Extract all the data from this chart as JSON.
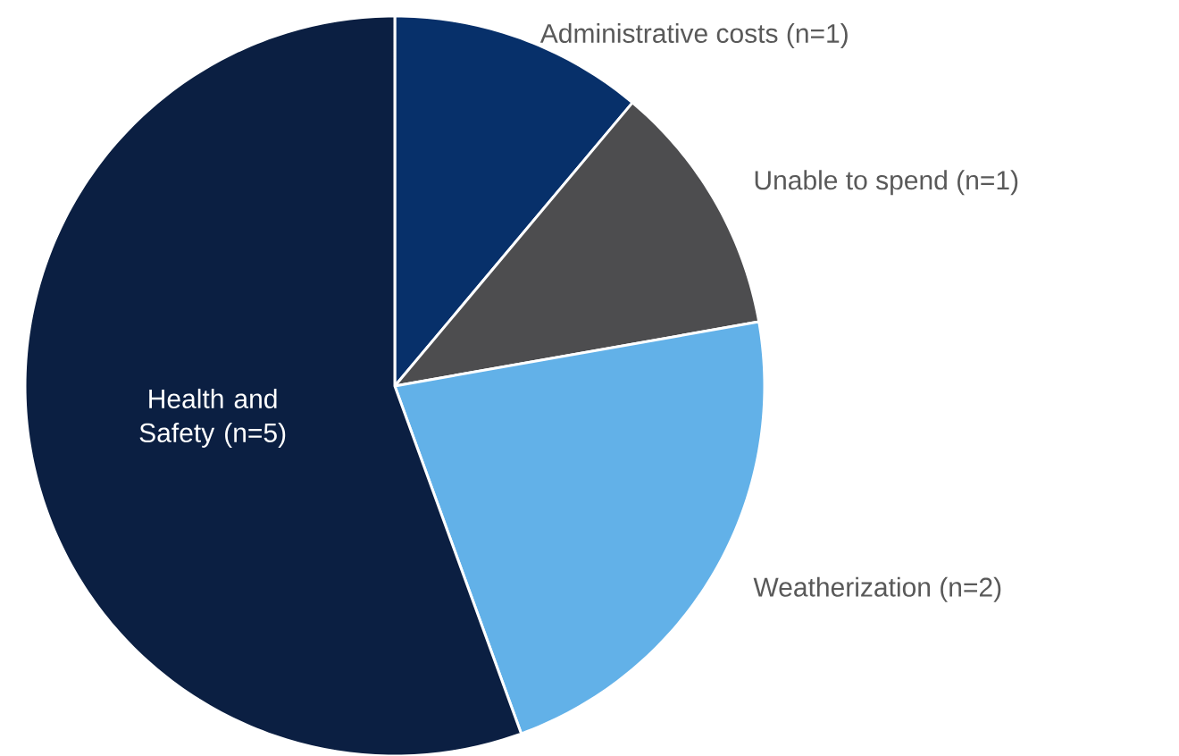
{
  "chart_data": {
    "type": "pie",
    "categories": [
      "Administrative costs (n=1)",
      "Unable to spend (n=1)",
      "Weatherization (n=2)",
      "Health and Safety (n=5)"
    ],
    "values": [
      1,
      1,
      2,
      5
    ],
    "colors": [
      "#07306a",
      "#4d4d4f",
      "#62b1e8",
      "#0b1f42"
    ]
  }
}
